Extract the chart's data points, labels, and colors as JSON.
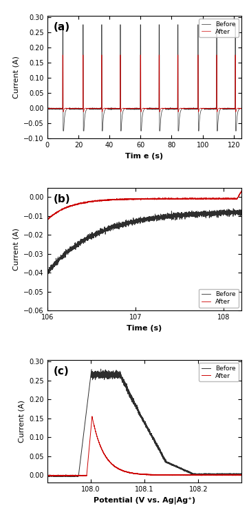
{
  "panel_a": {
    "title": "(a)",
    "xlabel": "Tim e (s)",
    "ylabel": "Current (A)",
    "xlim": [
      0,
      125
    ],
    "ylim": [
      -0.1,
      0.305
    ],
    "yticks": [
      -0.1,
      -0.05,
      0.0,
      0.05,
      0.1,
      0.15,
      0.2,
      0.25,
      0.3
    ],
    "xticks": [
      0,
      20,
      40,
      60,
      80,
      100,
      120
    ],
    "pulse_centers": [
      10,
      23,
      35,
      47,
      60,
      72,
      84,
      97,
      109,
      121
    ],
    "pulse_peak_black": 0.275,
    "pulse_trough_black": -0.075,
    "pulse_peak_red": 0.175,
    "pulse_trough_red": -0.012,
    "color_before": "#2d2d2d",
    "color_after": "#cc0000",
    "legend_labels": [
      "Before",
      "After"
    ]
  },
  "panel_b": {
    "title": "(b)",
    "xlabel": "Time (s)",
    "ylabel": "Current (A)",
    "xlim": [
      106,
      108.2
    ],
    "ylim": [
      -0.06,
      0.005
    ],
    "yticks": [
      0.0,
      -0.01,
      -0.02,
      -0.03,
      -0.04,
      -0.05,
      -0.06
    ],
    "xticks": [
      106,
      107,
      108
    ],
    "color_before": "#2d2d2d",
    "color_after": "#cc0000",
    "legend_labels": [
      "Before",
      "After"
    ]
  },
  "panel_c": {
    "title": "(c)",
    "xlabel": "Potential (V vs. Ag|Ag⁺)",
    "ylabel": "Current (A)",
    "xlim": [
      107.92,
      108.28
    ],
    "ylim": [
      -0.02,
      0.305
    ],
    "yticks": [
      0.0,
      0.05,
      0.1,
      0.15,
      0.2,
      0.25,
      0.3
    ],
    "xticks": [
      108.0,
      108.1,
      108.2
    ],
    "color_before": "#2d2d2d",
    "color_after": "#cc0000",
    "legend_labels": [
      "Before",
      "After"
    ]
  }
}
